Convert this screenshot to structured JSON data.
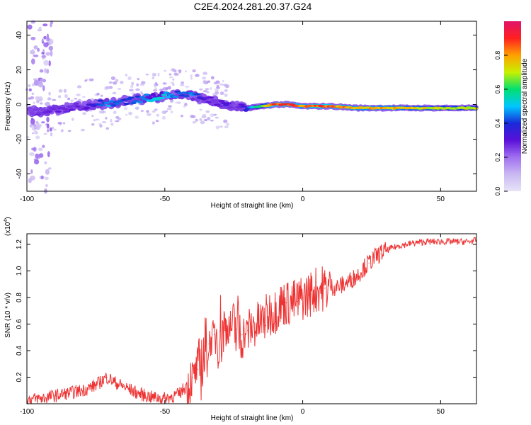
{
  "title": "C2E4.2024.281.20.37.G24",
  "colors": {
    "snr_line": "#ee3333",
    "colormap": [
      "#e8e4f8",
      "#c9b8f2",
      "#a070f0",
      "#5a10d8",
      "#1a2ad8",
      "#00c8ff",
      "#00e070",
      "#c8f000",
      "#ffa000",
      "#ff2020",
      "#e0146a"
    ]
  },
  "chart_data": [
    {
      "type": "heatmap",
      "xlabel": "Height of straight line (km)",
      "ylabel": "Frequency (Hz)",
      "xlim": [
        -100,
        63
      ],
      "ylim": [
        -50,
        48
      ],
      "xticks": [
        -100,
        -50,
        0,
        50
      ],
      "xtick_labels": [
        "-100",
        "-50",
        "0",
        "50"
      ],
      "yticks": [
        -40,
        -20,
        0,
        20,
        40
      ],
      "ytick_labels": [
        "-40",
        "-20",
        "0",
        "20",
        "40"
      ],
      "colorbar": {
        "label": "Normalized spectral amplitude",
        "range": [
          0,
          1
        ],
        "ticks": [
          0.0,
          0.2,
          0.4,
          0.6,
          0.8
        ],
        "tick_labels": [
          "0.0",
          "0.2",
          "0.4",
          "0.6",
          "0.8"
        ]
      },
      "ridge": {
        "x": [
          -100,
          -95,
          -90,
          -85,
          -80,
          -75,
          -70,
          -65,
          -60,
          -55,
          -50,
          -45,
          -40,
          -35,
          -30,
          -28,
          -25,
          -22,
          -20,
          -15,
          -10,
          -5,
          0,
          5,
          10,
          20,
          30,
          40,
          50,
          63
        ],
        "y": [
          -4,
          -4,
          -3,
          -2,
          -1,
          0,
          1,
          2,
          3,
          4,
          5,
          6,
          5,
          3,
          1,
          -1,
          -1,
          -2,
          -2,
          -1,
          0,
          0,
          -1,
          -1,
          -1,
          -2,
          -2,
          -2,
          -2,
          -2
        ],
        "amplitude": [
          0.25,
          0.3,
          0.3,
          0.3,
          0.3,
          0.4,
          0.5,
          0.45,
          0.45,
          0.55,
          0.55,
          0.45,
          0.5,
          0.3,
          0.3,
          0.35,
          0.25,
          0.35,
          0.4,
          0.7,
          0.95,
          0.95,
          0.85,
          0.95,
          0.9,
          0.85,
          0.85,
          0.8,
          0.75,
          0.75
        ]
      }
    },
    {
      "type": "line",
      "xlabel": "Height of straight line (km)",
      "ylabel": "SNR (10 * v/v)",
      "y_multiplier_label": "(x10",
      "y_multiplier_exp": "4",
      "y_multiplier_close": ")",
      "xlim": [
        -100,
        63
      ],
      "ylim": [
        0,
        1.28
      ],
      "xticks": [
        -100,
        -50,
        0,
        50
      ],
      "xtick_labels": [
        "-100",
        "-50",
        "0",
        "50"
      ],
      "yticks": [
        0.2,
        0.4,
        0.6,
        0.8,
        1.0,
        1.2
      ],
      "ytick_labels": [
        "0.2",
        "0.4",
        "0.6",
        "0.8",
        "1.0",
        "1.2"
      ],
      "series": [
        {
          "name": "",
          "x": [
            -100,
            -95,
            -90,
            -85,
            -80,
            -75,
            -71,
            -68,
            -65,
            -60,
            -55,
            -50,
            -45,
            -42,
            -40,
            -38,
            -36,
            -34,
            -32,
            -30,
            -28,
            -26,
            -24,
            -22,
            -20,
            -18,
            -16,
            -14,
            -12,
            -10,
            -8,
            -6,
            -4,
            -2,
            0,
            2,
            4,
            6,
            8,
            10,
            12,
            14,
            16,
            18,
            20,
            22,
            24,
            26,
            28,
            30,
            32,
            35,
            40,
            45,
            50,
            55,
            60,
            63
          ],
          "y": [
            0.03,
            0.04,
            0.06,
            0.08,
            0.1,
            0.14,
            0.2,
            0.16,
            0.13,
            0.08,
            0.05,
            0.04,
            0.07,
            0.14,
            0.2,
            0.26,
            0.35,
            0.45,
            0.52,
            0.55,
            0.57,
            0.58,
            0.56,
            0.52,
            0.55,
            0.58,
            0.6,
            0.63,
            0.68,
            0.7,
            0.75,
            0.76,
            0.76,
            0.77,
            0.8,
            0.82,
            0.85,
            0.87,
            0.87,
            0.88,
            0.88,
            0.89,
            0.91,
            0.94,
            0.97,
            1.02,
            1.06,
            1.1,
            1.13,
            1.15,
            1.17,
            1.19,
            1.21,
            1.22,
            1.22,
            1.22,
            1.22,
            1.23
          ]
        }
      ]
    }
  ]
}
